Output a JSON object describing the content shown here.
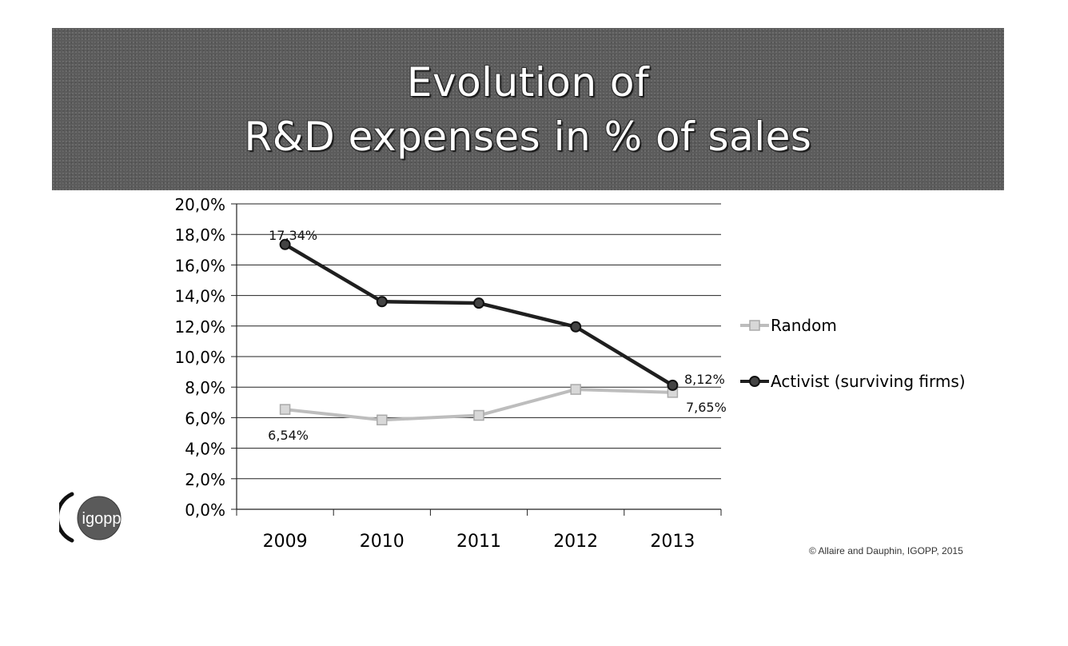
{
  "slide": {
    "title_line1": "Evolution of",
    "title_line2": "R&D expenses in % of sales",
    "logo_text": "igopp",
    "copyright": "© Allaire and Dauphin, IGOPP, 2015"
  },
  "chart_data": {
    "type": "line",
    "title": "Evolution of R&D expenses in % of sales",
    "xlabel": "",
    "ylabel": "",
    "categories": [
      "2009",
      "2010",
      "2011",
      "2012",
      "2013"
    ],
    "ylim": [
      0,
      20
    ],
    "y_ticks": [
      0,
      2,
      4,
      6,
      8,
      10,
      12,
      14,
      16,
      18,
      20
    ],
    "y_tick_labels": [
      "0,0%",
      "2,0%",
      "4,0%",
      "6,0%",
      "8,0%",
      "10,0%",
      "12,0%",
      "14,0%",
      "16,0%",
      "18,0%",
      "20,0%"
    ],
    "grid": true,
    "legend_position": "right",
    "series": [
      {
        "name": "Random",
        "values": [
          6.54,
          5.85,
          6.15,
          7.85,
          7.65
        ],
        "color": "#bdbdbd",
        "marker": "square"
      },
      {
        "name": "Activist (surviving firms)",
        "values": [
          17.34,
          13.6,
          13.5,
          11.95,
          8.12
        ],
        "color": "#1f1f1f",
        "marker": "circle"
      }
    ],
    "annotations": [
      {
        "series": 1,
        "index": 0,
        "text": "17,34%"
      },
      {
        "series": 0,
        "index": 0,
        "text": "6,54%"
      },
      {
        "series": 1,
        "index": 4,
        "text": "8,12%"
      },
      {
        "series": 0,
        "index": 4,
        "text": "7,65%"
      }
    ]
  }
}
